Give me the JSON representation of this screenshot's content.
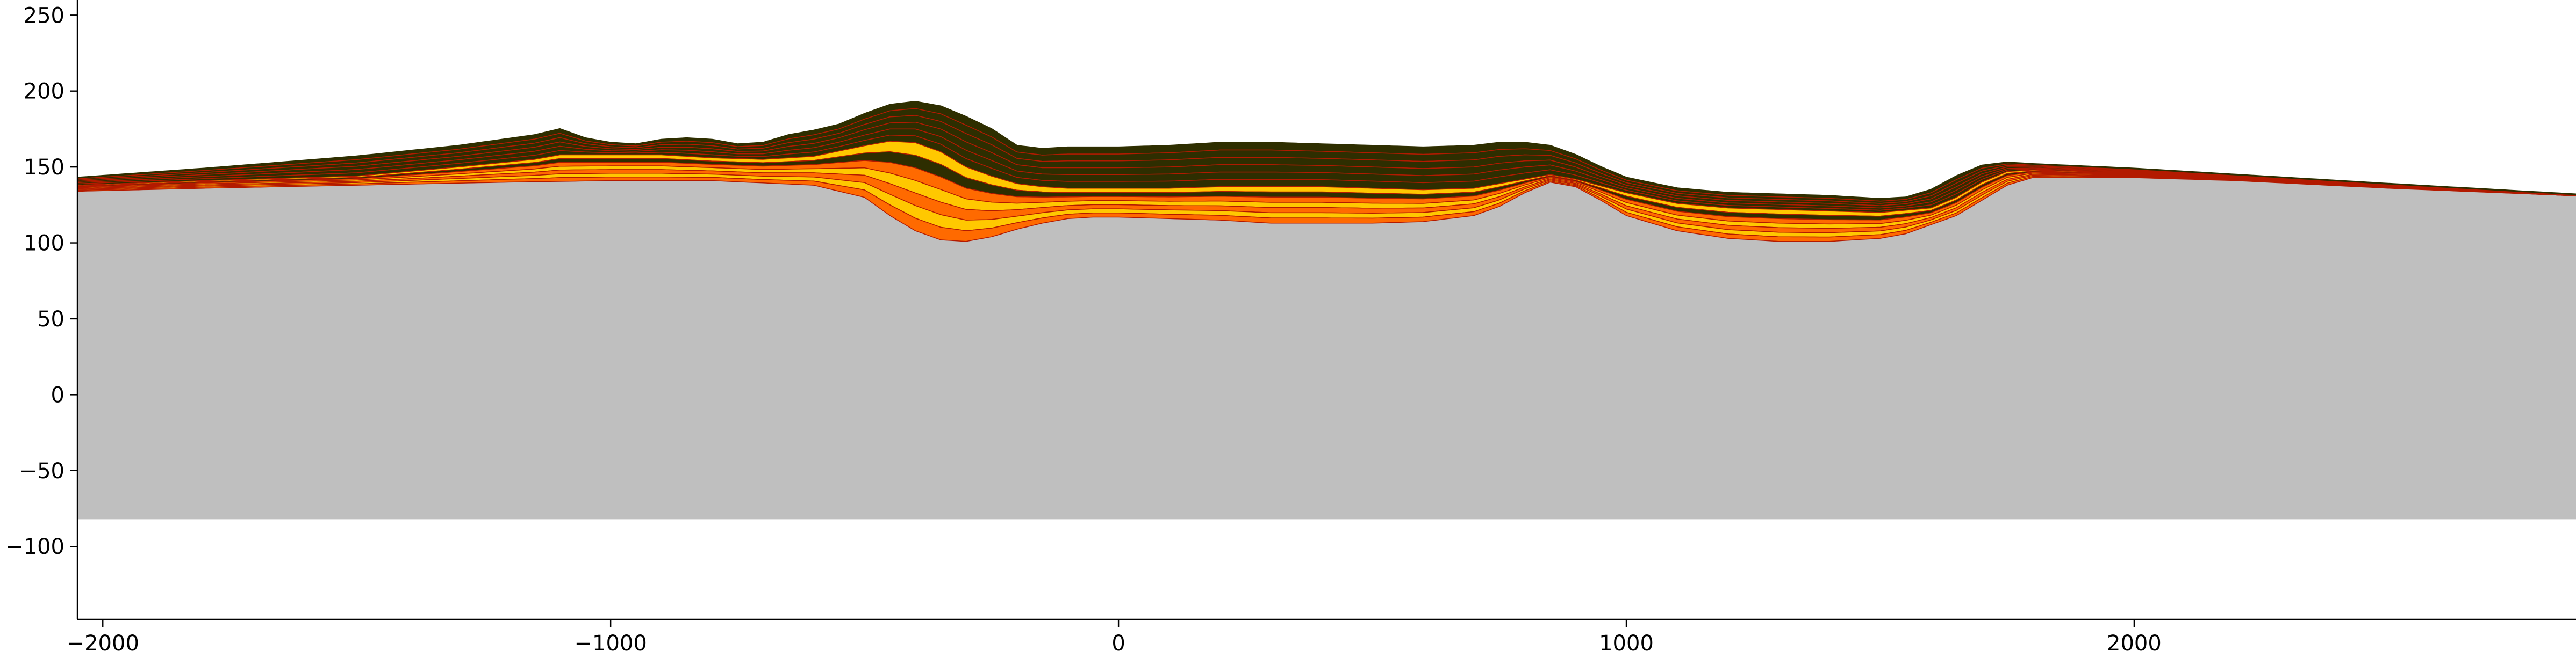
{
  "chart_data": {
    "type": "area",
    "title": "",
    "xlabel": "",
    "ylabel": "",
    "xlim": [
      -2050,
      2870
    ],
    "ylim": [
      -148,
      260
    ],
    "grid": false,
    "legend": "none",
    "x_ticks": [
      -2000,
      -1000,
      0,
      1000,
      2000
    ],
    "y_ticks": [
      -100,
      -50,
      0,
      50,
      100,
      150,
      200,
      250
    ],
    "x_tick_labels": [
      "−2000",
      "−1000",
      "0",
      "1000",
      "2000"
    ],
    "y_tick_labels": [
      "−100",
      "−50",
      "0",
      "50",
      "100",
      "150",
      "200",
      "250"
    ],
    "colors": {
      "basement": "#bfbfbf",
      "dark_layer": "#2e2e00",
      "yellow_layer": "#ffc800",
      "orange_layer": "#ff6a00",
      "thin_red_line": "#b31a00"
    },
    "series": [
      {
        "role": "basement",
        "bottom": -82,
        "top_x": [
          -2050,
          -1800,
          -1500,
          -1200,
          -1000,
          -800,
          -600,
          -500,
          -450,
          -400,
          -350,
          -300,
          -250,
          -200,
          -150,
          -100,
          -50,
          0,
          100,
          200,
          300,
          400,
          500,
          600,
          700,
          750,
          800,
          850,
          900,
          950,
          1000,
          1100,
          1200,
          1300,
          1400,
          1500,
          1550,
          1600,
          1650,
          1700,
          1750,
          1800,
          2000,
          2200,
          2500,
          2870
        ],
        "top_y": [
          134,
          136,
          138,
          140,
          141,
          141,
          138,
          130,
          118,
          108,
          102,
          101,
          104,
          109,
          113,
          116,
          117,
          117,
          116,
          115,
          113,
          113,
          113,
          114,
          118,
          124,
          133,
          140,
          137,
          128,
          118,
          108,
          103,
          101,
          101,
          103,
          106,
          112,
          118,
          128,
          138,
          143,
          143,
          141,
          136,
          131
        ]
      },
      {
        "role": "sediment_top",
        "x": [
          -2050,
          -1800,
          -1500,
          -1300,
          -1150,
          -1100,
          -1050,
          -1000,
          -950,
          -900,
          -850,
          -800,
          -750,
          -700,
          -650,
          -600,
          -550,
          -500,
          -450,
          -400,
          -350,
          -300,
          -250,
          -200,
          -150,
          -100,
          0,
          100,
          200,
          300,
          400,
          500,
          600,
          700,
          750,
          800,
          850,
          900,
          950,
          1000,
          1100,
          1200,
          1300,
          1400,
          1500,
          1550,
          1600,
          1650,
          1700,
          1750,
          1800,
          2000,
          2200,
          2500,
          2870
        ],
        "y": [
          143,
          149,
          157,
          164,
          171,
          175,
          169,
          166,
          165,
          168,
          169,
          168,
          165,
          166,
          171,
          174,
          178,
          185,
          191,
          193,
          190,
          183,
          175,
          164,
          162,
          163,
          163,
          164,
          166,
          166,
          165,
          164,
          163,
          164,
          166,
          166,
          164,
          158,
          150,
          143,
          136,
          133,
          132,
          131,
          129,
          130,
          135,
          144,
          151,
          153,
          152,
          149,
          145,
          139,
          132
        ]
      }
    ],
    "stacked_layers": {
      "order_top_to_bottom": [
        "dark_layer",
        "dark_layer",
        "dark_layer",
        "dark_layer",
        "dark_layer",
        "dark_layer",
        "yellow_layer",
        "dark_layer",
        "orange_layer",
        "yellow_layer",
        "orange_layer",
        "yellow_layer",
        "orange_layer"
      ],
      "mid_x": [
        -2050,
        -1800,
        -1500,
        -1300,
        -1150,
        -1100,
        -1000,
        -900,
        -800,
        -700,
        -600,
        -500,
        -450,
        -400,
        -350,
        -300,
        -250,
        -200,
        -150,
        -100,
        0,
        100,
        200,
        300,
        400,
        500,
        600,
        700,
        800,
        850,
        900,
        1000,
        1100,
        1200,
        1300,
        1400,
        1500,
        1600,
        1650,
        1700,
        1750,
        1800,
        2000,
        2200,
        2500,
        2870
      ],
      "mid_y": [
        138,
        141,
        144,
        150,
        155,
        158,
        158,
        158,
        156,
        155,
        157,
        164,
        167,
        166,
        160,
        150,
        144,
        139,
        137,
        136,
        136,
        136,
        137,
        137,
        137,
        136,
        135,
        136,
        142,
        145,
        142,
        133,
        126,
        123,
        122,
        121,
        120,
        123,
        130,
        140,
        147,
        148,
        146,
        143,
        137,
        131
      ]
    }
  }
}
